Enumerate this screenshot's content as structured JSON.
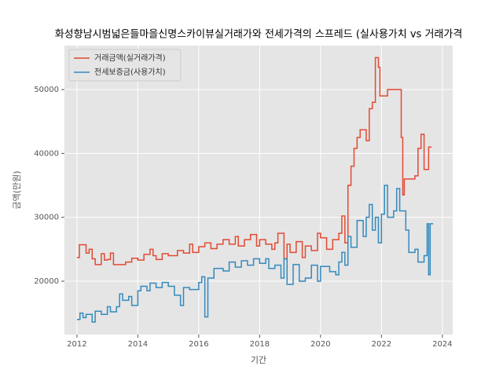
{
  "chart_data": {
    "type": "line",
    "drawstyle": "steps",
    "title": "화성향남시범넓은들마을신명스카이뷰실거래가와 전세가격의 스프레드 (실사용가치 vs 거래가격",
    "xlabel": "기간",
    "ylabel": "금액(만원)",
    "xlim": [
      2011.59,
      2024.34
    ],
    "xticks": [
      2012,
      2014,
      2016,
      2018,
      2020,
      2022,
      2024
    ],
    "ylim": [
      11640,
      56890
    ],
    "yticks": [
      20000,
      30000,
      40000,
      50000
    ],
    "grid": true,
    "legend": "upper left",
    "series": [
      {
        "name": "거래금액(실거래가격)",
        "color": "#E24A33",
        "x": [
          2012.0,
          2012.08,
          2012.3,
          2012.4,
          2012.5,
          2012.6,
          2012.8,
          2012.9,
          2013.0,
          2013.1,
          2013.2,
          2013.6,
          2013.8,
          2014.0,
          2014.2,
          2014.4,
          2014.5,
          2014.6,
          2014.8,
          2015.0,
          2015.3,
          2015.5,
          2015.7,
          2015.8,
          2016.0,
          2016.2,
          2016.4,
          2016.6,
          2016.8,
          2017.0,
          2017.2,
          2017.3,
          2017.5,
          2017.7,
          2017.9,
          2018.0,
          2018.2,
          2018.4,
          2018.5,
          2018.6,
          2018.8,
          2018.9,
          2019.0,
          2019.2,
          2019.4,
          2019.5,
          2019.7,
          2019.9,
          2020.0,
          2020.2,
          2020.4,
          2020.6,
          2020.7,
          2020.8,
          2020.9,
          2021.0,
          2021.1,
          2021.2,
          2021.3,
          2021.5,
          2021.6,
          2021.7,
          2021.8,
          2021.9,
          2021.95,
          2022.2,
          2022.65,
          2022.7,
          2022.75,
          2023.1,
          2023.2,
          2023.3,
          2023.4,
          2023.55,
          2023.65
        ],
        "values": [
          23700,
          25700,
          24400,
          25000,
          23500,
          22600,
          24300,
          23300,
          23400,
          24400,
          22600,
          23000,
          23600,
          23300,
          24200,
          25000,
          24000,
          23400,
          24300,
          24000,
          24800,
          24400,
          25800,
          24500,
          25400,
          26000,
          25100,
          25800,
          26500,
          25800,
          27000,
          25500,
          26500,
          27300,
          25500,
          26500,
          25800,
          25000,
          26000,
          27500,
          23500,
          25800,
          24500,
          26200,
          23700,
          25500,
          24800,
          27500,
          26800,
          25000,
          26500,
          27500,
          30200,
          26000,
          35000,
          38000,
          40800,
          42500,
          43700,
          42000,
          47000,
          48000,
          55000,
          53500,
          49000,
          50000,
          42500,
          33500,
          36000,
          36500,
          40800,
          43000,
          37500,
          41000,
          41000
        ]
      },
      {
        "name": "전세보증금(사용가치)",
        "color": "#348ABD",
        "x": [
          2012.0,
          2012.1,
          2012.2,
          2012.3,
          2012.5,
          2012.6,
          2012.8,
          2013.0,
          2013.1,
          2013.3,
          2013.4,
          2013.5,
          2013.7,
          2013.8,
          2014.0,
          2014.1,
          2014.3,
          2014.4,
          2014.6,
          2014.8,
          2015.0,
          2015.2,
          2015.4,
          2015.5,
          2015.7,
          2016.0,
          2016.1,
          2016.2,
          2016.3,
          2016.5,
          2016.8,
          2017.0,
          2017.2,
          2017.4,
          2017.6,
          2017.8,
          2018.0,
          2018.2,
          2018.3,
          2018.5,
          2018.7,
          2018.8,
          2018.9,
          2019.1,
          2019.3,
          2019.5,
          2019.7,
          2019.9,
          2020.0,
          2020.3,
          2020.5,
          2020.6,
          2020.7,
          2020.8,
          2020.9,
          2021.0,
          2021.2,
          2021.4,
          2021.5,
          2021.6,
          2021.7,
          2021.8,
          2021.9,
          2022.0,
          2022.1,
          2022.2,
          2022.4,
          2022.5,
          2022.6,
          2022.8,
          2022.9,
          2023.1,
          2023.2,
          2023.4,
          2023.5,
          2023.55,
          2023.6,
          2023.7
        ],
        "values": [
          14000,
          15000,
          14300,
          14800,
          13600,
          15300,
          14800,
          16000,
          15200,
          16000,
          18000,
          17000,
          17600,
          16200,
          18500,
          19200,
          18500,
          19700,
          19000,
          19800,
          19200,
          17800,
          16200,
          19000,
          18700,
          19800,
          20700,
          14400,
          20500,
          22000,
          21600,
          23000,
          22200,
          23200,
          22500,
          23500,
          22800,
          23500,
          22000,
          22500,
          20500,
          23500,
          19500,
          22600,
          20000,
          20500,
          22500,
          20000,
          22300,
          21500,
          21000,
          23000,
          24500,
          22500,
          27000,
          25300,
          29500,
          27000,
          30000,
          32000,
          28000,
          30000,
          26000,
          30500,
          35000,
          30000,
          31000,
          34500,
          31000,
          28000,
          24500,
          25000,
          23000,
          24000,
          29000,
          21000,
          29000,
          29000
        ]
      }
    ]
  }
}
